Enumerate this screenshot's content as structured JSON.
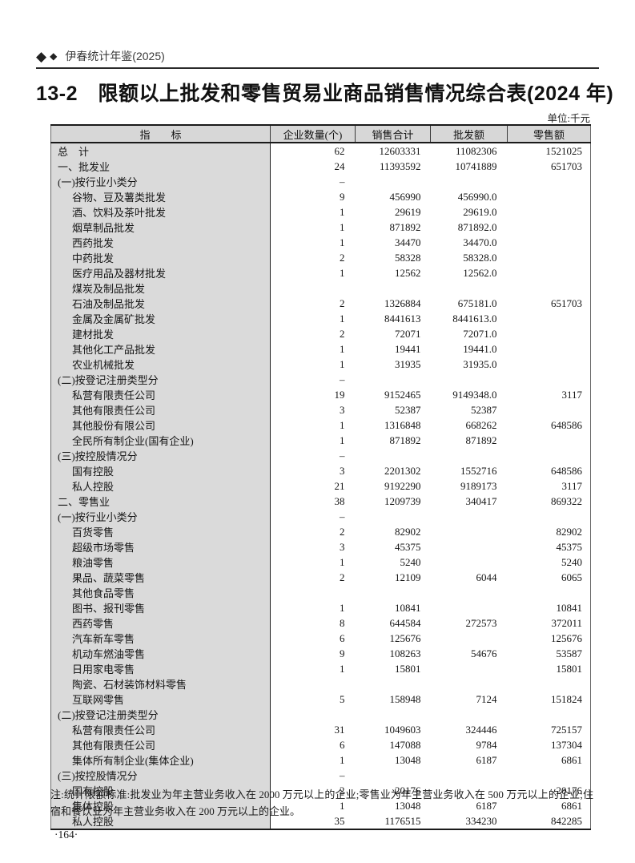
{
  "header": {
    "diamond_icon": "◆",
    "yearbook_title": "伊春统计年鉴(2025)"
  },
  "title": "13-2　限额以上批发和零售贸易业商品销售情况综合表(2024 年)",
  "unit_label": "单位:千元",
  "colors": {
    "header_bg": "#d7d7d7",
    "label_column_bg": "#dadada",
    "border": "#1a1a1a"
  },
  "table": {
    "columns": [
      "指　　标",
      "企业数量(个)",
      "销售合计",
      "批发额",
      "零售额"
    ],
    "rows": [
      {
        "label": "总　计",
        "indent": 0,
        "values": [
          "62",
          "12603331",
          "11082306",
          "1521025"
        ]
      },
      {
        "label": "一、批发业",
        "indent": 0,
        "values": [
          "24",
          "11393592",
          "10741889",
          "651703"
        ]
      },
      {
        "label": "(一)按行业小类分",
        "indent": 0,
        "values": [
          "–",
          "",
          "",
          ""
        ]
      },
      {
        "label": "谷物、豆及薯类批发",
        "indent": 1,
        "values": [
          "9",
          "456990",
          "456990.0",
          ""
        ]
      },
      {
        "label": "酒、饮料及茶叶批发",
        "indent": 1,
        "values": [
          "1",
          "29619",
          "29619.0",
          ""
        ]
      },
      {
        "label": "烟草制品批发",
        "indent": 1,
        "values": [
          "1",
          "871892",
          "871892.0",
          ""
        ]
      },
      {
        "label": "西药批发",
        "indent": 1,
        "values": [
          "1",
          "34470",
          "34470.0",
          ""
        ]
      },
      {
        "label": "中药批发",
        "indent": 1,
        "values": [
          "2",
          "58328",
          "58328.0",
          ""
        ]
      },
      {
        "label": "医疗用品及器材批发",
        "indent": 1,
        "values": [
          "1",
          "12562",
          "12562.0",
          ""
        ]
      },
      {
        "label": "煤炭及制品批发",
        "indent": 1,
        "values": [
          "",
          "",
          "",
          ""
        ]
      },
      {
        "label": "石油及制品批发",
        "indent": 1,
        "values": [
          "2",
          "1326884",
          "675181.0",
          "651703"
        ]
      },
      {
        "label": "金属及金属矿批发",
        "indent": 1,
        "values": [
          "1",
          "8441613",
          "8441613.0",
          ""
        ]
      },
      {
        "label": "建材批发",
        "indent": 1,
        "values": [
          "2",
          "72071",
          "72071.0",
          ""
        ]
      },
      {
        "label": "其他化工产品批发",
        "indent": 1,
        "values": [
          "1",
          "19441",
          "19441.0",
          ""
        ]
      },
      {
        "label": "农业机械批发",
        "indent": 1,
        "values": [
          "1",
          "31935",
          "31935.0",
          ""
        ]
      },
      {
        "label": "(二)按登记注册类型分",
        "indent": 0,
        "values": [
          "–",
          "",
          "",
          ""
        ]
      },
      {
        "label": "私营有限责任公司",
        "indent": 1,
        "values": [
          "19",
          "9152465",
          "9149348.0",
          "3117"
        ]
      },
      {
        "label": "其他有限责任公司",
        "indent": 1,
        "values": [
          "3",
          "52387",
          "52387",
          ""
        ]
      },
      {
        "label": "其他股份有限公司",
        "indent": 1,
        "values": [
          "1",
          "1316848",
          "668262",
          "648586"
        ]
      },
      {
        "label": "全民所有制企业(国有企业)",
        "indent": 1,
        "values": [
          "1",
          "871892",
          "871892",
          ""
        ]
      },
      {
        "label": "(三)按控股情况分",
        "indent": 0,
        "values": [
          "–",
          "",
          "",
          ""
        ]
      },
      {
        "label": "国有控股",
        "indent": 1,
        "values": [
          "3",
          "2201302",
          "1552716",
          "648586"
        ]
      },
      {
        "label": "私人控股",
        "indent": 1,
        "values": [
          "21",
          "9192290",
          "9189173",
          "3117"
        ]
      },
      {
        "label": "二、零售业",
        "indent": 0,
        "values": [
          "38",
          "1209739",
          "340417",
          "869322"
        ]
      },
      {
        "label": "(一)按行业小类分",
        "indent": 0,
        "values": [
          "–",
          "",
          "",
          ""
        ]
      },
      {
        "label": "百货零售",
        "indent": 1,
        "values": [
          "2",
          "82902",
          "",
          "82902"
        ]
      },
      {
        "label": "超级市场零售",
        "indent": 1,
        "values": [
          "3",
          "45375",
          "",
          "45375"
        ]
      },
      {
        "label": "粮油零售",
        "indent": 1,
        "values": [
          "1",
          "5240",
          "",
          "5240"
        ]
      },
      {
        "label": "果品、蔬菜零售",
        "indent": 1,
        "values": [
          "2",
          "12109",
          "6044",
          "6065"
        ]
      },
      {
        "label": "其他食品零售",
        "indent": 1,
        "values": [
          "",
          "",
          "",
          ""
        ]
      },
      {
        "label": "图书、报刊零售",
        "indent": 1,
        "values": [
          "1",
          "10841",
          "",
          "10841"
        ]
      },
      {
        "label": "西药零售",
        "indent": 1,
        "values": [
          "8",
          "644584",
          "272573",
          "372011"
        ]
      },
      {
        "label": "汽车新车零售",
        "indent": 1,
        "values": [
          "6",
          "125676",
          "",
          "125676"
        ]
      },
      {
        "label": "机动车燃油零售",
        "indent": 1,
        "values": [
          "9",
          "108263",
          "54676",
          "53587"
        ]
      },
      {
        "label": "日用家电零售",
        "indent": 1,
        "values": [
          "1",
          "15801",
          "",
          "15801"
        ]
      },
      {
        "label": "陶瓷、石材装饰材料零售",
        "indent": 1,
        "values": [
          "",
          "",
          "",
          ""
        ]
      },
      {
        "label": "互联网零售",
        "indent": 1,
        "values": [
          "5",
          "158948",
          "7124",
          "151824"
        ]
      },
      {
        "label": "(二)按登记注册类型分",
        "indent": 0,
        "values": [
          "",
          "",
          "",
          ""
        ]
      },
      {
        "label": "私营有限责任公司",
        "indent": 1,
        "values": [
          "31",
          "1049603",
          "324446",
          "725157"
        ]
      },
      {
        "label": "其他有限责任公司",
        "indent": 1,
        "values": [
          "6",
          "147088",
          "9784",
          "137304"
        ]
      },
      {
        "label": "集体所有制企业(集体企业)",
        "indent": 1,
        "values": [
          "1",
          "13048",
          "6187",
          "6861"
        ]
      },
      {
        "label": "(三)按控股情况分",
        "indent": 0,
        "values": [
          "–",
          "",
          "",
          ""
        ]
      },
      {
        "label": "国有控股",
        "indent": 1,
        "values": [
          "2",
          "20176",
          "",
          "20176"
        ]
      },
      {
        "label": "集体控股",
        "indent": 1,
        "values": [
          "1",
          "13048",
          "6187",
          "6861"
        ]
      },
      {
        "label": "私人控股",
        "indent": 1,
        "values": [
          "35",
          "1176515",
          "334230",
          "842285"
        ]
      }
    ]
  },
  "note": "注:统计限额标准:批发业为年主营业务收入在 2000 万元以上的企业;零售业为年主营业务收入在 500 万元以上的企业;住宿和餐饮业为年主营业务收入在 200 万元以上的企业。",
  "page_number": "·164·"
}
